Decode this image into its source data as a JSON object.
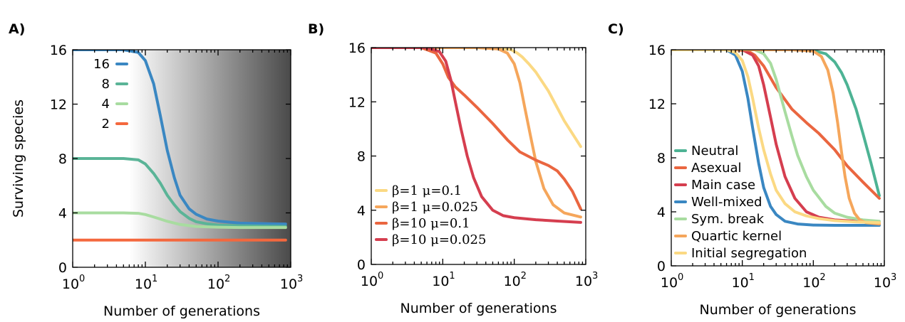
{
  "chart_data": [
    {
      "panel": "A)",
      "type": "line",
      "xscale": "log",
      "xlim": [
        1,
        1000
      ],
      "ylim": [
        0,
        16
      ],
      "xticks": [
        {
          "base": "10",
          "exp": "0"
        },
        {
          "base": "10",
          "exp": "1"
        },
        {
          "base": "10",
          "exp": "2"
        },
        {
          "base": "10",
          "exp": "3"
        }
      ],
      "yticks": [
        "0",
        "4",
        "8",
        "12",
        "16"
      ],
      "xlabel": "Number of generations",
      "ylabel": "Surviving species",
      "legend_position": "top-left",
      "legend_style": "label-then-line",
      "background": "gradient-white-to-gray-from-x6",
      "series": [
        {
          "name": "16",
          "color": "#3a87c2",
          "x": [
            1,
            5,
            8,
            10,
            13,
            16,
            20,
            25,
            30,
            40,
            50,
            70,
            100,
            200,
            500,
            850
          ],
          "y": [
            16,
            16,
            15.8,
            15.2,
            13.5,
            11.2,
            8.6,
            6.6,
            5.3,
            4.3,
            3.9,
            3.55,
            3.4,
            3.25,
            3.2,
            3.18
          ]
        },
        {
          "name": "8",
          "color": "#5ab497",
          "x": [
            1,
            5,
            8,
            10,
            13,
            16,
            20,
            25,
            30,
            40,
            50,
            70,
            100,
            200,
            500,
            850
          ],
          "y": [
            8,
            8,
            7.9,
            7.6,
            6.9,
            6.2,
            5.3,
            4.6,
            4.1,
            3.6,
            3.35,
            3.2,
            3.1,
            3.05,
            3.02,
            3.0
          ]
        },
        {
          "name": "4",
          "color": "#a8dca0",
          "x": [
            1,
            5,
            8,
            10,
            13,
            16,
            20,
            30,
            50,
            100,
            200,
            850
          ],
          "y": [
            4,
            4,
            3.97,
            3.88,
            3.7,
            3.55,
            3.38,
            3.15,
            3.0,
            2.95,
            2.92,
            2.92
          ]
        },
        {
          "name": "2",
          "color": "#f4683e",
          "x": [
            1,
            850
          ],
          "y": [
            2,
            2
          ]
        }
      ]
    },
    {
      "panel": "B)",
      "type": "line",
      "xscale": "log",
      "xlim": [
        1,
        1000
      ],
      "ylim": [
        0,
        16
      ],
      "xticks": [
        {
          "base": "10",
          "exp": "0"
        },
        {
          "base": "10",
          "exp": "1"
        },
        {
          "base": "10",
          "exp": "2"
        },
        {
          "base": "10",
          "exp": "3"
        }
      ],
      "yticks": [
        "0",
        "4",
        "8",
        "12",
        "16"
      ],
      "xlabel": "Number of generations",
      "ylabel": "",
      "legend_position": "bottom-left",
      "legend_style": "line-then-label",
      "series": [
        {
          "name": "β=1 μ=0.1",
          "color": "#fbd983",
          "x": [
            1,
            30,
            60,
            90,
            110,
            130,
            160,
            200,
            300,
            500,
            850
          ],
          "y": [
            16,
            16,
            15.95,
            15.85,
            15.6,
            15.3,
            14.8,
            14.2,
            12.8,
            10.6,
            8.7
          ]
        },
        {
          "name": "β=1 μ=0.025",
          "color": "#f5a65b",
          "x": [
            1,
            30,
            60,
            80,
            100,
            120,
            140,
            170,
            200,
            260,
            350,
            500,
            850
          ],
          "y": [
            16,
            16,
            15.9,
            15.6,
            14.8,
            13.4,
            11.6,
            9.4,
            7.6,
            5.6,
            4.4,
            3.8,
            3.5
          ]
        },
        {
          "name": "β=10 μ=0.1",
          "color": "#ea6640",
          "x": [
            1,
            5,
            8,
            10,
            12,
            15,
            20,
            30,
            50,
            80,
            120,
            200,
            300,
            400,
            500,
            650,
            850
          ],
          "y": [
            16,
            16,
            15.6,
            14.8,
            13.8,
            13.1,
            12.5,
            11.6,
            10.4,
            9.2,
            8.3,
            7.7,
            7.3,
            6.9,
            6.3,
            5.4,
            4.1
          ]
        },
        {
          "name": "β=10 μ=0.025",
          "color": "#d53e4f",
          "x": [
            1,
            6,
            9,
            11,
            13,
            15,
            18,
            22,
            27,
            35,
            50,
            70,
            100,
            200,
            400,
            850
          ],
          "y": [
            16,
            16,
            15.7,
            15.0,
            13.6,
            12.0,
            10.0,
            8.0,
            6.4,
            5.0,
            4.0,
            3.6,
            3.45,
            3.3,
            3.2,
            3.1
          ]
        }
      ]
    },
    {
      "panel": "C)",
      "type": "line",
      "xscale": "log",
      "xlim": [
        1,
        1000
      ],
      "ylim": [
        0,
        16
      ],
      "xticks": [
        {
          "base": "10",
          "exp": "0"
        },
        {
          "base": "10",
          "exp": "1"
        },
        {
          "base": "10",
          "exp": "2"
        },
        {
          "base": "10",
          "exp": "3"
        }
      ],
      "yticks": [
        "0",
        "4",
        "8",
        "12",
        "16"
      ],
      "xlabel": "Number of generations",
      "ylabel": "",
      "legend_position": "bottom-left",
      "legend_style": "line-then-label",
      "series": [
        {
          "name": "Neutral",
          "color": "#4db394",
          "x": [
            1,
            50,
            100,
            150,
            200,
            250,
            300,
            400,
            500,
            650,
            850
          ],
          "y": [
            16,
            16,
            15.95,
            15.7,
            15.1,
            14.3,
            13.4,
            11.6,
            9.8,
            7.6,
            5.2
          ]
        },
        {
          "name": "Asexual",
          "color": "#ea6640",
          "x": [
            1,
            8,
            12,
            15,
            20,
            30,
            50,
            80,
            120,
            200,
            300,
            500,
            850
          ],
          "y": [
            16,
            16,
            15.9,
            15.6,
            14.8,
            13.2,
            11.6,
            10.6,
            9.8,
            8.6,
            7.4,
            6.2,
            5.0
          ]
        },
        {
          "name": "Main case",
          "color": "#d53e4f",
          "x": [
            1,
            10,
            14,
            17,
            20,
            25,
            30,
            40,
            55,
            80,
            120,
            200,
            400,
            850
          ],
          "y": [
            16,
            16,
            15.6,
            14.8,
            13.4,
            11.0,
            9.0,
            6.6,
            5.0,
            4.0,
            3.6,
            3.4,
            3.3,
            3.2
          ]
        },
        {
          "name": "Well-mixed",
          "color": "#3a87c2",
          "x": [
            1,
            6,
            8,
            10,
            12,
            14,
            17,
            20,
            25,
            30,
            40,
            60,
            100,
            200,
            850
          ],
          "y": [
            16,
            16,
            15.6,
            14.4,
            12.4,
            10.2,
            7.6,
            5.8,
            4.4,
            3.8,
            3.3,
            3.1,
            3.02,
            3.0,
            3.0
          ]
        },
        {
          "name": "Sym. break",
          "color": "#a8dca0",
          "x": [
            1,
            15,
            20,
            25,
            30,
            40,
            50,
            60,
            80,
            100,
            150,
            200,
            300,
            500,
            850
          ],
          "y": [
            16,
            16,
            15.7,
            15.0,
            13.8,
            11.4,
            9.6,
            8.2,
            6.6,
            5.6,
            4.4,
            3.9,
            3.6,
            3.4,
            3.3
          ]
        },
        {
          "name": "Quartic kernel",
          "color": "#f5a65b",
          "x": [
            1,
            50,
            100,
            130,
            160,
            190,
            220,
            250,
            280,
            320,
            380,
            450,
            550,
            850
          ],
          "y": [
            16,
            16,
            15.9,
            15.5,
            14.5,
            12.8,
            10.6,
            8.4,
            6.6,
            5.0,
            3.9,
            3.4,
            3.2,
            3.1
          ]
        },
        {
          "name": "Initial segregation",
          "color": "#fbd983",
          "x": [
            1,
            6,
            8,
            10,
            12,
            14,
            17,
            20,
            25,
            30,
            40,
            55,
            80,
            120,
            200,
            400,
            850
          ],
          "y": [
            16,
            16,
            15.8,
            15.2,
            14.0,
            12.4,
            10.2,
            8.6,
            6.8,
            5.6,
            4.6,
            4.0,
            3.7,
            3.5,
            3.35,
            3.25,
            3.2
          ]
        }
      ]
    }
  ]
}
